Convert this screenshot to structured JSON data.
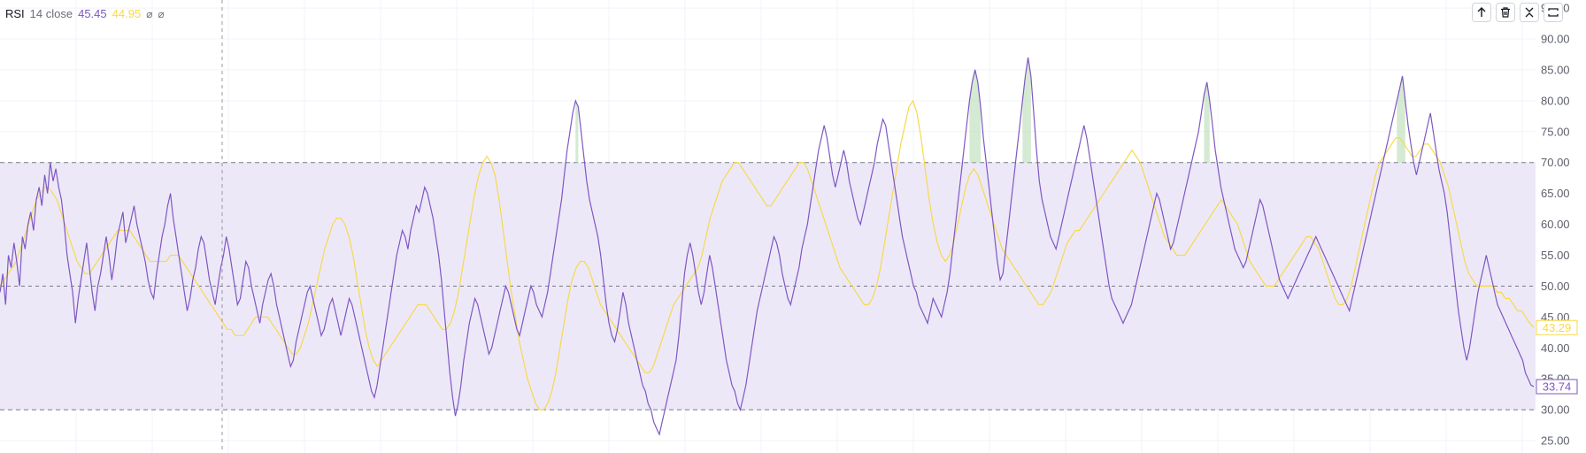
{
  "legend": {
    "name": "RSI",
    "params": "14 close",
    "rsi_value": "45.45",
    "ma_value": "44.95",
    "symbol_1": "⌀",
    "symbol_2": "⌀"
  },
  "toolbar": [
    {
      "name": "move-up-button",
      "icon": "arrow-up-icon"
    },
    {
      "name": "delete-button",
      "icon": "trash-icon"
    },
    {
      "name": "collapse-button",
      "icon": "collapse-icon"
    },
    {
      "name": "maximize-button",
      "icon": "maximize-icon"
    }
  ],
  "colors": {
    "rsi": "#7e57c2",
    "ma": "#f7d94c",
    "band": "#ede8f8",
    "grid": "#f0f3fa",
    "overbought_fill": "#b9dcb4"
  },
  "chart_data": {
    "type": "line",
    "ylim": [
      23,
      96.3
    ],
    "y_ticks": [
      "95.00",
      "90.00",
      "85.00",
      "80.00",
      "75.00",
      "70.00",
      "65.00",
      "60.00",
      "55.00",
      "50.00",
      "45.00",
      "40.00",
      "35.00",
      "30.00",
      "25.00"
    ],
    "bands": {
      "upper": 70,
      "middle": 50,
      "lower": 30
    },
    "last_rsi_label": "33.74",
    "last_ma_label": "43.29",
    "series": [
      {
        "key": "rsi",
        "values": [
          49,
          52,
          47,
          55,
          53,
          57,
          54,
          50,
          58,
          56,
          60,
          62,
          59,
          64,
          66,
          63,
          68,
          65,
          70,
          67,
          69,
          66,
          64,
          60,
          55,
          52,
          49,
          44,
          48,
          51,
          54,
          57,
          53,
          49,
          46,
          50,
          52,
          55,
          58,
          55,
          51,
          54,
          58,
          60,
          62,
          57,
          59,
          61,
          63,
          60,
          58,
          56,
          54,
          51,
          49,
          48,
          52,
          55,
          58,
          60,
          63,
          65,
          61,
          58,
          55,
          52,
          49,
          46,
          48,
          51,
          53,
          56,
          58,
          57,
          54,
          51,
          49,
          47,
          50,
          53,
          55,
          58,
          56,
          53,
          50,
          47,
          48,
          51,
          54,
          53,
          50,
          48,
          46,
          44,
          47,
          49,
          51,
          52,
          50,
          47,
          45,
          43,
          41,
          39,
          37,
          38,
          41,
          43,
          45,
          47,
          49,
          50,
          48,
          46,
          44,
          42,
          43,
          45,
          47,
          48,
          46,
          44,
          42,
          44,
          46,
          48,
          47,
          45,
          43,
          41,
          39,
          37,
          35,
          33,
          32,
          34,
          37,
          40,
          43,
          46,
          49,
          52,
          55,
          57,
          59,
          58,
          56,
          59,
          61,
          63,
          62,
          64,
          66,
          65,
          63,
          61,
          58,
          55,
          51,
          46,
          41,
          36,
          32,
          29,
          31,
          34,
          38,
          41,
          44,
          46,
          48,
          47,
          45,
          43,
          41,
          39,
          40,
          42,
          44,
          46,
          48,
          50,
          49,
          47,
          45,
          43,
          42,
          44,
          46,
          48,
          50,
          49,
          47,
          46,
          45,
          47,
          49,
          52,
          55,
          58,
          61,
          64,
          68,
          72,
          75,
          78,
          80,
          79,
          75,
          71,
          67,
          64,
          62,
          60,
          58,
          55,
          51,
          47,
          44,
          42,
          41,
          43,
          46,
          49,
          47,
          44,
          42,
          40,
          38,
          36,
          34,
          33,
          31,
          30,
          28,
          27,
          26,
          28,
          30,
          32,
          34,
          36,
          38,
          42,
          47,
          52,
          55,
          57,
          55,
          52,
          49,
          47,
          49,
          52,
          55,
          53,
          50,
          47,
          44,
          41,
          38,
          36,
          34,
          33,
          31,
          30,
          32,
          34,
          37,
          40,
          43,
          46,
          48,
          50,
          52,
          54,
          56,
          58,
          57,
          55,
          52,
          50,
          48,
          47,
          49,
          51,
          53,
          56,
          58,
          60,
          63,
          66,
          69,
          72,
          74,
          76,
          74,
          71,
          68,
          66,
          68,
          70,
          72,
          70,
          67,
          65,
          63,
          61,
          60,
          62,
          64,
          66,
          68,
          70,
          73,
          75,
          77,
          76,
          73,
          70,
          67,
          64,
          61,
          58,
          56,
          54,
          52,
          50,
          49,
          47,
          46,
          45,
          44,
          46,
          48,
          47,
          46,
          45,
          47,
          49,
          52,
          56,
          60,
          64,
          68,
          72,
          76,
          80,
          83,
          85,
          83,
          79,
          74,
          70,
          66,
          62,
          58,
          54,
          51,
          52,
          56,
          60,
          64,
          68,
          72,
          76,
          80,
          84,
          87,
          84,
          78,
          72,
          67,
          64,
          62,
          60,
          58,
          57,
          56,
          58,
          60,
          62,
          64,
          66,
          68,
          70,
          72,
          74,
          76,
          74,
          71,
          68,
          65,
          62,
          59,
          56,
          53,
          50,
          48,
          47,
          46,
          45,
          44,
          45,
          46,
          47,
          49,
          51,
          53,
          55,
          57,
          59,
          61,
          63,
          65,
          64,
          62,
          60,
          58,
          56,
          57,
          59,
          61,
          63,
          65,
          67,
          69,
          71,
          73,
          75,
          78,
          81,
          83,
          80,
          76,
          72,
          69,
          66,
          64,
          62,
          60,
          58,
          56,
          55,
          54,
          53,
          54,
          56,
          58,
          60,
          62,
          64,
          63,
          61,
          59,
          57,
          55,
          53,
          51,
          50,
          49,
          48,
          49,
          50,
          51,
          52,
          53,
          54,
          55,
          56,
          57,
          58,
          57,
          56,
          55,
          54,
          53,
          52,
          51,
          50,
          49,
          48,
          47,
          46,
          48,
          50,
          52,
          54,
          56,
          58,
          60,
          62,
          64,
          66,
          68,
          70,
          72,
          74,
          76,
          78,
          80,
          82,
          84,
          80,
          76,
          73,
          70,
          68,
          70,
          72,
          74,
          76,
          78,
          75,
          72,
          69,
          67,
          65,
          62,
          58,
          54,
          50,
          46,
          43,
          40,
          38,
          40,
          43,
          46,
          49,
          51,
          53,
          55,
          53,
          51,
          49,
          47,
          46,
          45,
          44,
          43,
          42,
          41,
          40,
          39,
          38,
          36,
          35,
          34,
          33.74
        ]
      },
      {
        "key": "ma",
        "values": [
          50,
          51,
          52,
          53,
          54,
          56,
          58,
          60,
          62,
          64,
          65,
          66,
          66,
          65,
          64,
          62,
          60,
          58,
          56,
          54,
          53,
          52,
          52,
          53,
          54,
          55,
          56,
          57,
          58,
          59,
          59,
          59,
          59,
          58,
          57,
          56,
          55,
          54,
          54,
          54,
          54,
          54,
          55,
          55,
          55,
          54,
          53,
          52,
          51,
          50,
          49,
          48,
          47,
          46,
          45,
          44,
          43,
          43,
          42,
          42,
          42,
          43,
          44,
          45,
          45,
          45,
          45,
          44,
          43,
          42,
          41,
          40,
          39,
          39,
          40,
          42,
          44,
          47,
          50,
          53,
          56,
          58,
          60,
          61,
          61,
          60,
          58,
          55,
          51,
          47,
          43,
          40,
          38,
          37,
          38,
          39,
          40,
          41,
          42,
          43,
          44,
          45,
          46,
          47,
          47,
          47,
          46,
          45,
          44,
          43,
          43,
          44,
          46,
          49,
          53,
          57,
          61,
          65,
          68,
          70,
          71,
          70,
          68,
          64,
          59,
          54,
          49,
          45,
          41,
          38,
          35,
          33,
          31,
          30,
          30,
          31,
          33,
          36,
          40,
          44,
          48,
          51,
          53,
          54,
          54,
          53,
          51,
          49,
          47,
          46,
          45,
          44,
          43,
          42,
          41,
          40,
          39,
          38,
          37,
          36,
          36,
          37,
          39,
          41,
          43,
          45,
          47,
          48,
          49,
          50,
          51,
          52,
          53,
          55,
          58,
          61,
          63,
          65,
          67,
          68,
          69,
          70,
          70,
          69,
          68,
          67,
          66,
          65,
          64,
          63,
          63,
          64,
          65,
          66,
          67,
          68,
          69,
          70,
          70,
          69,
          67,
          65,
          63,
          61,
          59,
          57,
          55,
          53,
          52,
          51,
          50,
          49,
          48,
          47,
          47,
          48,
          50,
          53,
          57,
          61,
          65,
          69,
          73,
          76,
          79,
          80,
          78,
          74,
          69,
          64,
          60,
          57,
          55,
          54,
          55,
          57,
          60,
          63,
          66,
          68,
          69,
          68,
          66,
          64,
          62,
          60,
          58,
          56,
          55,
          54,
          53,
          52,
          51,
          50,
          49,
          48,
          47,
          47,
          48,
          49,
          51,
          53,
          55,
          57,
          58,
          59,
          59,
          60,
          61,
          62,
          63,
          64,
          65,
          66,
          67,
          68,
          69,
          70,
          71,
          72,
          71,
          70,
          68,
          66,
          64,
          62,
          60,
          58,
          57,
          56,
          55,
          55,
          55,
          56,
          57,
          58,
          59,
          60,
          61,
          62,
          63,
          64,
          63,
          62,
          61,
          60,
          58,
          56,
          54,
          53,
          52,
          51,
          50,
          50,
          50,
          51,
          52,
          53,
          54,
          55,
          56,
          57,
          58,
          58,
          57,
          56,
          54,
          52,
          50,
          48,
          47,
          47,
          48,
          50,
          53,
          56,
          59,
          62,
          65,
          68,
          70,
          71,
          72,
          73,
          74,
          74,
          73,
          72,
          71,
          71,
          72,
          73,
          73,
          72,
          71,
          70,
          68,
          66,
          63,
          60,
          57,
          54,
          52,
          51,
          50,
          50,
          50,
          50,
          50,
          49,
          49,
          48,
          48,
          47,
          46,
          46,
          45,
          44,
          43.29
        ]
      }
    ]
  }
}
